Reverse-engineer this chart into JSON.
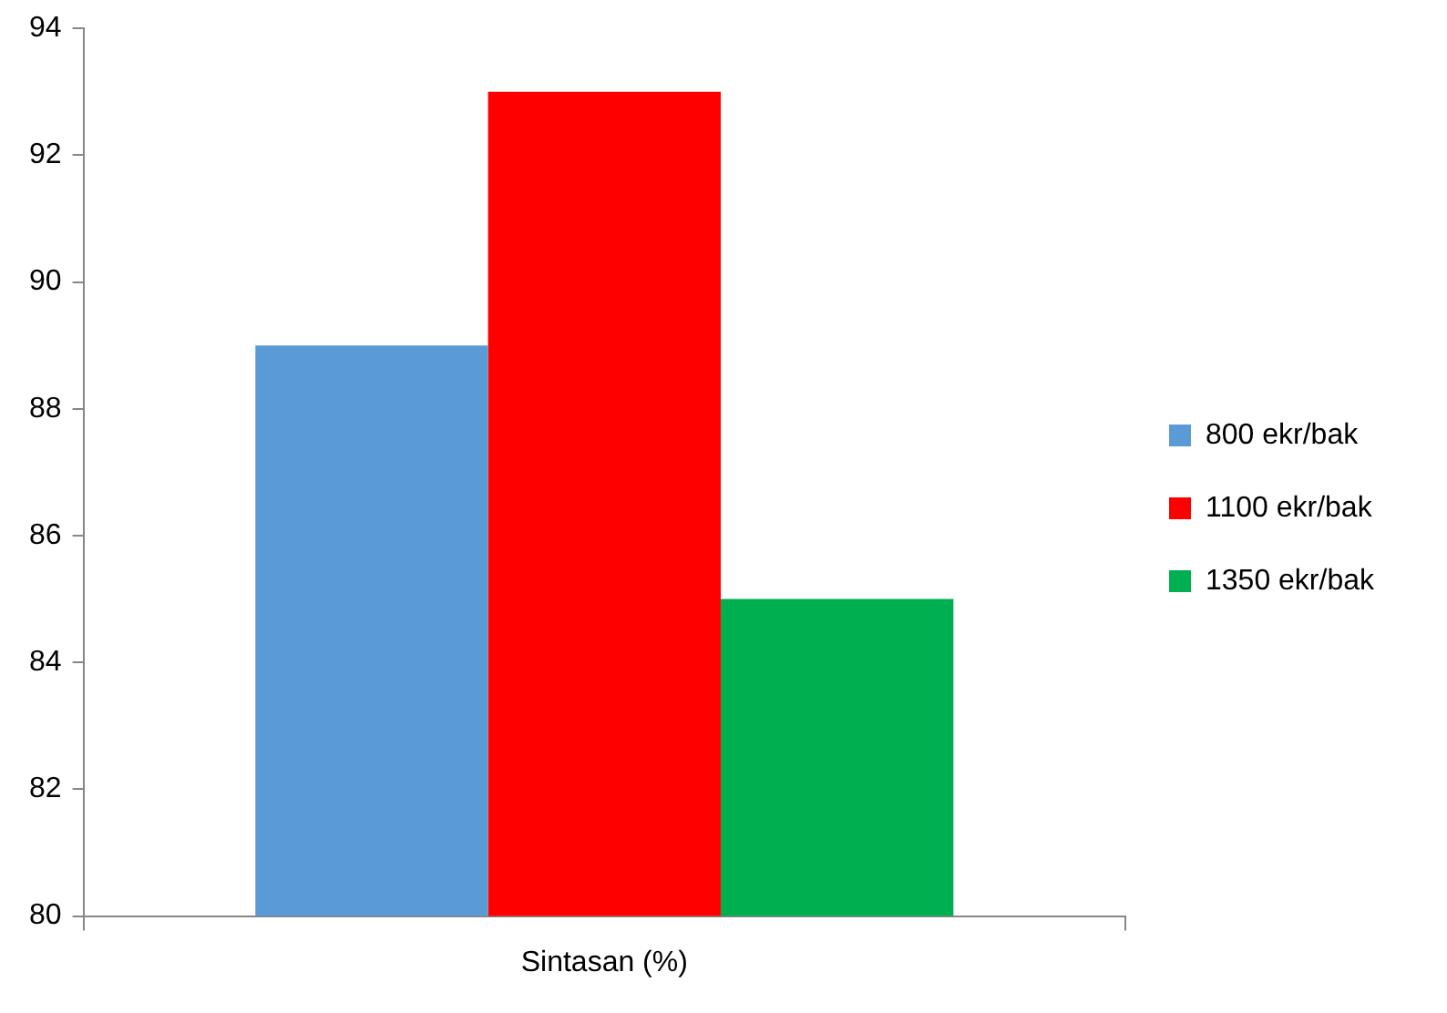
{
  "chart_data": {
    "type": "bar",
    "categories": [
      "Sintasan (%)"
    ],
    "series": [
      {
        "name": "800 ekr/bak",
        "color": "#5b9bd5",
        "values": [
          89
        ]
      },
      {
        "name": "1100 ekr/bak",
        "color": "#ff0000",
        "values": [
          93
        ]
      },
      {
        "name": "1350 ekr/bak",
        "color": "#00b050",
        "values": [
          85
        ]
      }
    ],
    "ylim": [
      80,
      94
    ],
    "yticks": [
      80,
      82,
      84,
      86,
      88,
      90,
      92,
      94
    ],
    "grid": false,
    "legend": "right"
  }
}
